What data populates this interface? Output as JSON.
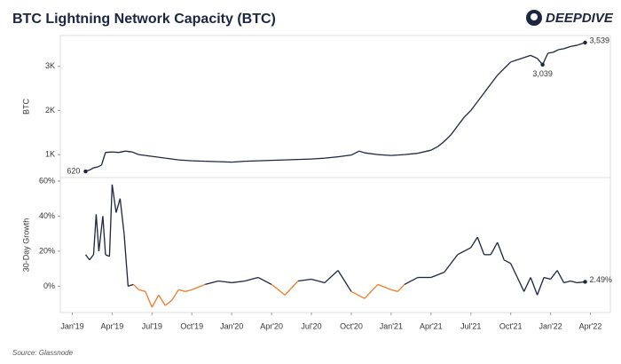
{
  "brand": "DEEPDIVE",
  "source": "Source: Glassnode",
  "chart_data": [
    {
      "type": "line",
      "title": "BTC Lightning Network Capacity (BTC)",
      "y_label": "BTC",
      "x": [
        1.0,
        1.3,
        1.6,
        1.9,
        2.2,
        2.5,
        3.0,
        3.5,
        4.0,
        4.5,
        5.0,
        5.5,
        6.0,
        6.5,
        7.0,
        8.0,
        9.0,
        10.0,
        11.0,
        12.0,
        13.0,
        14.0,
        15.0,
        16.0,
        17.0,
        18.0,
        19.0,
        20.0,
        21.0,
        21.6,
        22.0,
        23.0,
        24.0,
        24.5,
        25.0,
        26.0,
        27.0,
        27.5,
        28.0,
        28.5,
        29.0,
        29.5,
        30.0,
        30.5,
        31.0,
        31.5,
        32.0,
        32.5,
        33.0,
        33.5,
        34.0,
        34.5,
        35.0,
        35.4,
        35.8,
        36.2,
        36.6,
        37.0,
        37.5,
        38.0,
        38.6
      ],
      "series": [
        {
          "name": "Capacity",
          "color": "#1c2541",
          "values": [
            620,
            650,
            700,
            720,
            760,
            1050,
            1060,
            1050,
            1080,
            1060,
            1000,
            980,
            960,
            940,
            920,
            880,
            860,
            850,
            840,
            830,
            850,
            860,
            870,
            880,
            890,
            900,
            920,
            950,
            990,
            1080,
            1040,
            1000,
            980,
            990,
            1000,
            1030,
            1100,
            1180,
            1300,
            1450,
            1650,
            1850,
            2000,
            2200,
            2400,
            2600,
            2800,
            2950,
            3100,
            3150,
            3200,
            3250,
            3180,
            3039,
            3300,
            3320,
            3380,
            3400,
            3450,
            3480,
            3539
          ],
          "value_labels": [
            "620",
            null,
            null,
            null,
            null,
            null,
            null,
            null,
            null,
            null,
            null,
            null,
            null,
            null,
            null,
            null,
            null,
            null,
            null,
            null,
            null,
            null,
            null,
            null,
            null,
            null,
            null,
            null,
            null,
            null,
            null,
            null,
            null,
            null,
            null,
            null,
            null,
            null,
            null,
            null,
            null,
            null,
            null,
            null,
            null,
            null,
            null,
            null,
            null,
            null,
            null,
            null,
            null,
            "3,039",
            null,
            null,
            null,
            null,
            null,
            null,
            "3,539"
          ]
        }
      ],
      "xlim": [
        -0.9,
        40.5
      ],
      "ylim": [
        480,
        3700
      ],
      "yticks": [
        {
          "value": 1000,
          "label": "1K"
        },
        {
          "value": 2000,
          "label": "2K"
        },
        {
          "value": 3000,
          "label": "3K"
        }
      ]
    },
    {
      "type": "line",
      "y_label": "30-Day Growth",
      "negative_color": "#f07c2a",
      "x": [
        1.0,
        1.3,
        1.6,
        1.8,
        2.0,
        2.3,
        2.5,
        2.8,
        3.0,
        3.3,
        3.6,
        3.9,
        4.2,
        4.6,
        5.0,
        5.5,
        6.0,
        6.5,
        7.0,
        7.5,
        8.0,
        8.5,
        9.0,
        10.0,
        11.0,
        12.0,
        13.0,
        14.0,
        15.0,
        16.0,
        17.0,
        18.0,
        19.0,
        20.0,
        21.0,
        22.0,
        23.0,
        24.0,
        24.5,
        25.0,
        26.0,
        27.0,
        28.0,
        29.0,
        30.0,
        30.5,
        31.0,
        31.5,
        32.0,
        32.5,
        33.0,
        33.5,
        34.0,
        34.5,
        35.0,
        35.5,
        36.0,
        36.5,
        37.0,
        37.5,
        38.0,
        38.6
      ],
      "series": [
        {
          "name": "30-Day Growth",
          "color": "#1c2541",
          "values": [
            18,
            15,
            18,
            41,
            20,
            40,
            18,
            17,
            58,
            42,
            50,
            30,
            0,
            1,
            -2,
            -3,
            -12,
            -5,
            -11,
            -8,
            -2,
            -3,
            -2,
            1,
            3,
            2,
            3,
            5,
            1,
            -5,
            3,
            4,
            2,
            9,
            -3,
            -7,
            1,
            -2,
            -3,
            1,
            5,
            5,
            8,
            18,
            22,
            28,
            18,
            18,
            25,
            15,
            13,
            5,
            -3,
            5,
            -5,
            5,
            4,
            9,
            2,
            3,
            2,
            2.49
          ],
          "value_labels": [
            null,
            null,
            null,
            null,
            null,
            null,
            null,
            null,
            null,
            null,
            null,
            null,
            null,
            null,
            null,
            null,
            null,
            null,
            null,
            null,
            null,
            null,
            null,
            null,
            null,
            null,
            null,
            null,
            null,
            null,
            null,
            null,
            null,
            null,
            null,
            null,
            null,
            null,
            null,
            null,
            null,
            null,
            null,
            null,
            null,
            null,
            null,
            null,
            null,
            null,
            null,
            null,
            null,
            null,
            null,
            null,
            null,
            null,
            null,
            null,
            null,
            "2.49%"
          ]
        }
      ],
      "xlim": [
        -0.9,
        40.5
      ],
      "ylim": [
        -15,
        62
      ],
      "yticks": [
        {
          "value": 0,
          "label": "0%"
        },
        {
          "value": 20,
          "label": "20%"
        },
        {
          "value": 40,
          "label": "40%"
        },
        {
          "value": 60,
          "label": "60%"
        }
      ],
      "xticks": [
        {
          "value": 0,
          "label": "Jan'19"
        },
        {
          "value": 3,
          "label": "Apr'19"
        },
        {
          "value": 6,
          "label": "Jul'19"
        },
        {
          "value": 9,
          "label": "Oct'19"
        },
        {
          "value": 12,
          "label": "Jan'20"
        },
        {
          "value": 15,
          "label": "Apr'20"
        },
        {
          "value": 18,
          "label": "Jul'20"
        },
        {
          "value": 21,
          "label": "Oct'20"
        },
        {
          "value": 24,
          "label": "Jan'21"
        },
        {
          "value": 27,
          "label": "Apr'21"
        },
        {
          "value": 30,
          "label": "Jul'21"
        },
        {
          "value": 33,
          "label": "Oct'21"
        },
        {
          "value": 36,
          "label": "Jan'22"
        },
        {
          "value": 39,
          "label": "Apr'22"
        }
      ]
    }
  ]
}
